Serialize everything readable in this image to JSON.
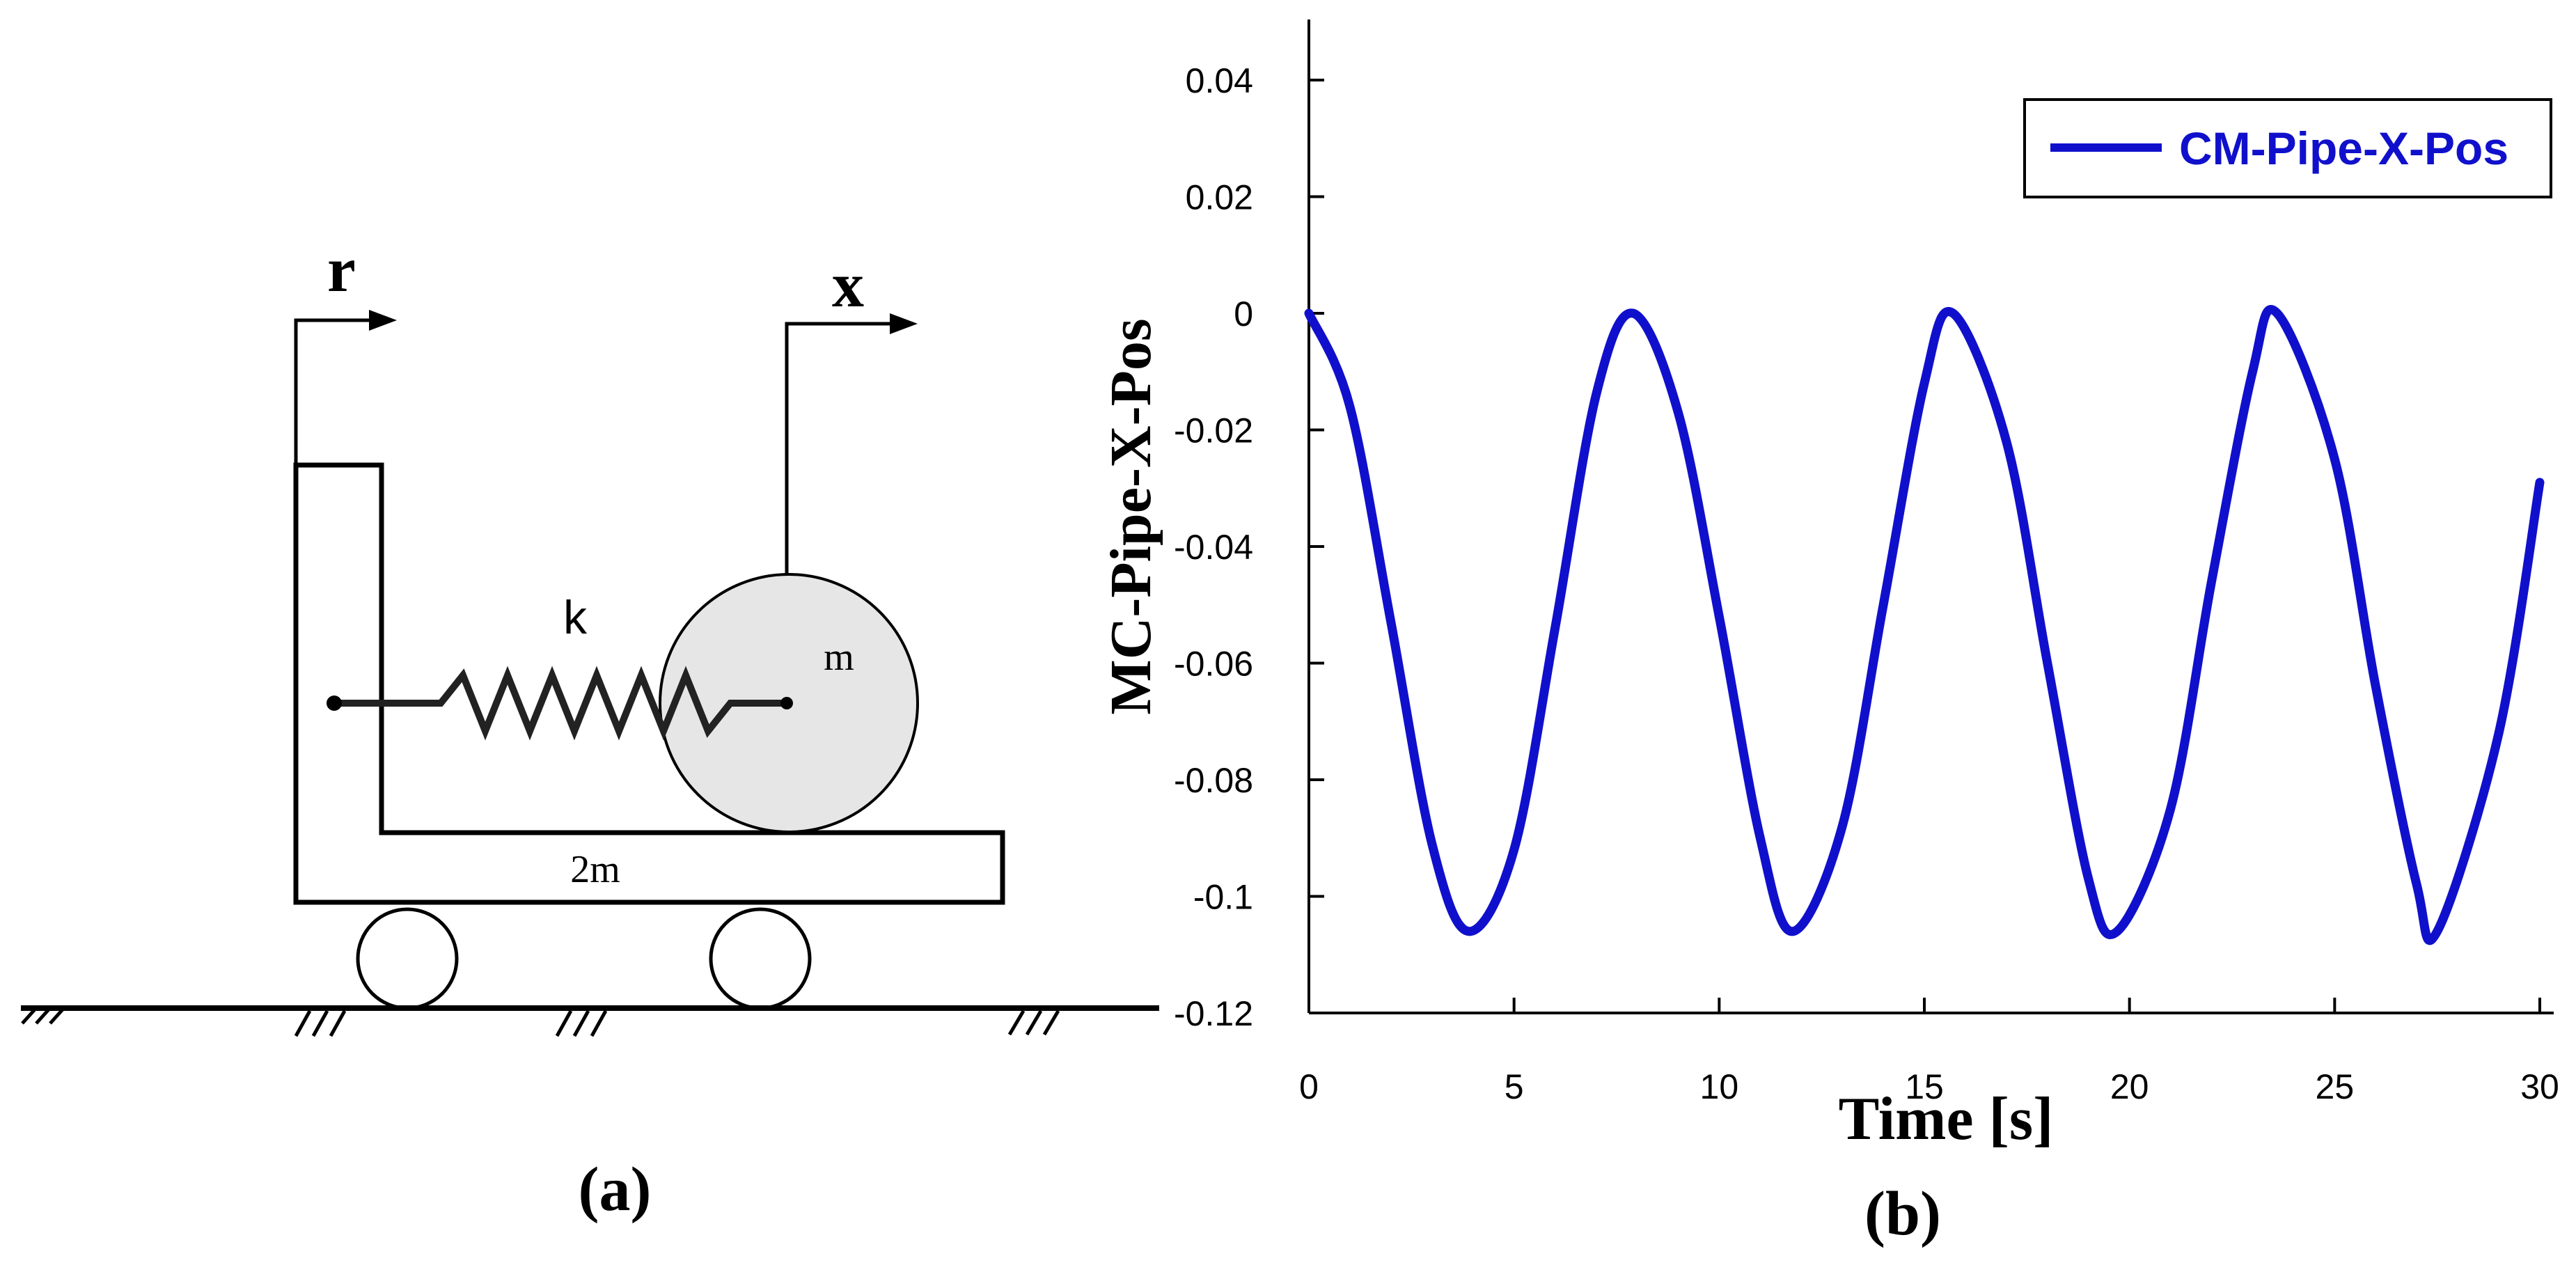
{
  "diagram": {
    "label_r": "r",
    "label_x": "x",
    "label_k": "k",
    "label_m": "m",
    "label_2m": "2m",
    "caption": "(a)"
  },
  "plot": {
    "caption": "(b)"
  },
  "chart_data": {
    "type": "line",
    "xlabel": "Time [s]",
    "ylabel": "MC-Pipe-X-Pos",
    "xlim": [
      0,
      30
    ],
    "ylim": [
      -0.12,
      0.045
    ],
    "xticks": [
      0,
      5,
      10,
      15,
      20,
      25,
      30
    ],
    "xtick_labels": [
      "0",
      "5",
      "10",
      "15",
      "20",
      "25",
      "30"
    ],
    "yticks": [
      0.04,
      0.02,
      0,
      -0.02,
      -0.04,
      -0.06,
      -0.08,
      -0.1,
      -0.12
    ],
    "ytick_labels": [
      "0.04",
      "0.02",
      "0",
      "-0.02",
      "-0.04",
      "-0.06",
      "-0.08",
      "-0.1",
      "-0.12"
    ],
    "grid": false,
    "legend_position": "top-right",
    "series": [
      {
        "name": "CM-Pipe-X-Pos",
        "color": "#1010CC",
        "x": [
          0,
          1,
          2,
          3,
          3.9,
          5,
          6,
          7,
          7.9,
          9,
          10,
          11,
          11.8,
          13,
          14,
          15,
          15.7,
          17,
          18,
          19,
          19.7,
          21,
          22,
          23,
          23.6,
          25,
          26,
          27,
          27.5,
          29,
          30
        ],
        "values": [
          0,
          -0.016,
          -0.053,
          -0.091,
          -0.106,
          -0.092,
          -0.054,
          -0.014,
          0,
          -0.017,
          -0.052,
          -0.09,
          -0.106,
          -0.088,
          -0.05,
          -0.012,
          0,
          -0.022,
          -0.06,
          -0.097,
          -0.106,
          -0.085,
          -0.046,
          -0.01,
          0,
          -0.025,
          -0.064,
          -0.098,
          -0.106,
          -0.072,
          -0.029
        ]
      }
    ]
  }
}
